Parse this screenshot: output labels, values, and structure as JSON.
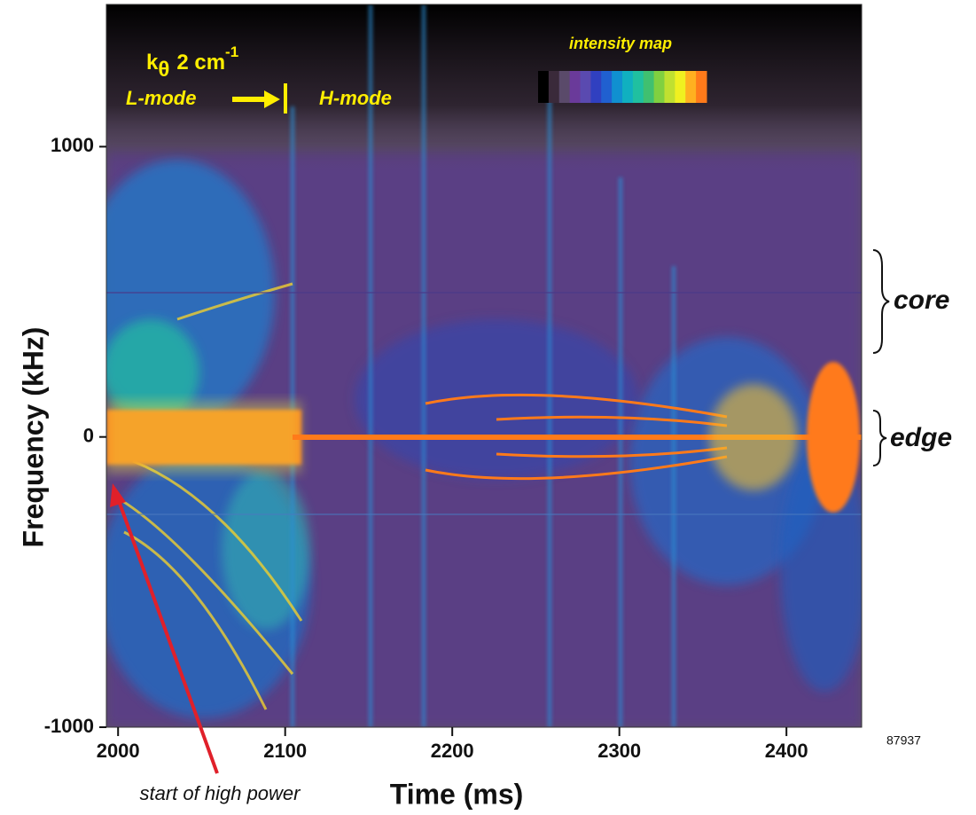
{
  "chart_data": {
    "type": "spectrogram",
    "x_label": "Time (ms)",
    "y_label": "Frequency (kHz)",
    "xlim": [
      1993,
      2445
    ],
    "ylim": [
      -1000,
      1490
    ],
    "xticks": [
      2000,
      2100,
      2200,
      2300,
      2400
    ],
    "yticks": [
      -1000,
      0,
      1000
    ],
    "colorbar": {
      "label": "intensity map",
      "colors": [
        "#000000",
        "#3a2a3a",
        "#5a4a6a",
        "#6a3a9a",
        "#5a4ab0",
        "#3040c0",
        "#2060d0",
        "#1090d0",
        "#10b0c0",
        "#20c0a0",
        "#40c070",
        "#80d040",
        "#c0e030",
        "#f0f020",
        "#ffb020",
        "#ff7a1a"
      ]
    },
    "annotations": {
      "k": "k",
      "theta": "θ",
      "wavenumber": "2 cm",
      "exponent": "-1",
      "l_mode": "L-mode",
      "h_mode": "H-mode",
      "core": "core",
      "edge": "edge",
      "start": "start of high power",
      "shot": "87937"
    }
  }
}
